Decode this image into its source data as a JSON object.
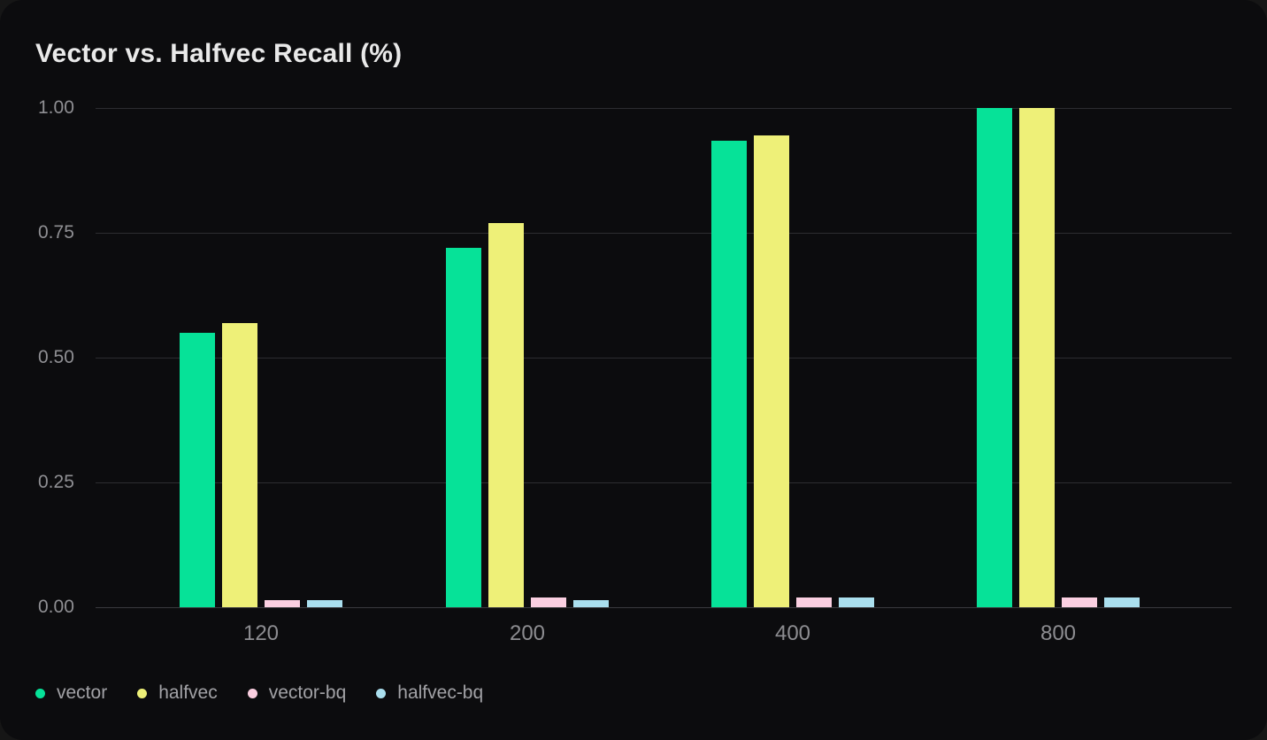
{
  "chart_data": {
    "type": "bar",
    "title": "Vector vs. Halfvec Recall (%)",
    "categories": [
      "120",
      "200",
      "400",
      "800"
    ],
    "series": [
      {
        "name": "vector",
        "color": "#06e298",
        "values": [
          0.55,
          0.72,
          0.935,
          1.0
        ]
      },
      {
        "name": "halfvec",
        "color": "#eef078",
        "values": [
          0.57,
          0.77,
          0.945,
          1.0
        ]
      },
      {
        "name": "vector-bq",
        "color": "#fbcfe1",
        "values": [
          0.015,
          0.02,
          0.02,
          0.02
        ]
      },
      {
        "name": "halfvec-bq",
        "color": "#aadfee",
        "values": [
          0.015,
          0.015,
          0.02,
          0.02
        ]
      }
    ],
    "xlabel": "",
    "ylabel": "",
    "ylim": [
      0,
      1
    ],
    "yticks": [
      "0.00",
      "0.25",
      "0.50",
      "0.75",
      "1.00"
    ],
    "grid": true,
    "legend_position": "bottom-left"
  },
  "colors": {
    "card_background": "#0c0c0e",
    "title_text": "#e9e9e9",
    "tick_text": "#8d8d91",
    "legend_text": "#a2a2a6",
    "gridline": "#2d2d31",
    "baseline": "#3a3a3e"
  }
}
